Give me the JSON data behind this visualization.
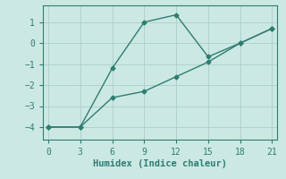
{
  "line1_x": [
    0,
    3,
    6,
    9,
    12,
    15,
    18,
    21
  ],
  "line1_y": [
    -4.0,
    -4.0,
    -1.2,
    1.0,
    1.35,
    -0.65,
    0.0,
    0.7
  ],
  "line2_x": [
    0,
    3,
    6,
    9,
    12,
    15,
    18,
    21
  ],
  "line2_y": [
    -4.0,
    -4.0,
    -2.6,
    -2.3,
    -1.6,
    -0.9,
    0.0,
    0.7
  ],
  "line_color": "#2e7d72",
  "bg_color": "#cce8e3",
  "grid_color": "#aacec9",
  "xlabel": "Humidex (Indice chaleur)",
  "xlabel_fontsize": 7.5,
  "xticks": [
    0,
    3,
    6,
    9,
    12,
    15,
    18,
    21
  ],
  "yticks": [
    -4,
    -3,
    -2,
    -1,
    0,
    1
  ],
  "xlim": [
    -0.5,
    21.5
  ],
  "ylim": [
    -4.6,
    1.8
  ],
  "marker": "D",
  "marker_size": 2.5,
  "linewidth": 1.0,
  "tick_fontsize": 7
}
